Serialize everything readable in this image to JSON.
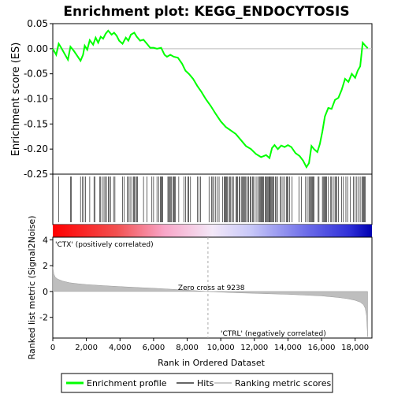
{
  "title": "Enrichment plot: KEGG_ENDOCYTOSIS",
  "colors": {
    "es_line": "#00ff00",
    "hits": "#000000",
    "metric_fill": "#bebebe",
    "pos_label": "#ff0000",
    "neg_label": "#0000ff",
    "zero_line": "#bbbbbb",
    "frame": "#000000"
  },
  "chart_data": [
    {
      "type": "line",
      "name": "enrichment-score",
      "ylabel": "Enrichment score (ES)",
      "ylim": [
        -0.25,
        0.05
      ],
      "yticks": [
        -0.25,
        -0.2,
        -0.15,
        -0.1,
        -0.05,
        0.0,
        0.05
      ],
      "ytick_labels": [
        "-0.25",
        "-0.20",
        "-0.15",
        "-0.10",
        "-0.05",
        "0.00",
        "0.05"
      ],
      "xlim": [
        0,
        19000
      ],
      "points": [
        [
          0,
          0
        ],
        [
          200,
          -0.012
        ],
        [
          350,
          0.01
        ],
        [
          500,
          0.002
        ],
        [
          700,
          -0.01
        ],
        [
          900,
          -0.022
        ],
        [
          1050,
          0.004
        ],
        [
          1250,
          -0.004
        ],
        [
          1450,
          -0.014
        ],
        [
          1650,
          -0.024
        ],
        [
          1800,
          -0.012
        ],
        [
          1900,
          0.006
        ],
        [
          2050,
          -0.002
        ],
        [
          2200,
          0.017
        ],
        [
          2400,
          0.008
        ],
        [
          2550,
          0.022
        ],
        [
          2700,
          0.012
        ],
        [
          2850,
          0.024
        ],
        [
          3000,
          0.02
        ],
        [
          3150,
          0.03
        ],
        [
          3300,
          0.036
        ],
        [
          3500,
          0.028
        ],
        [
          3650,
          0.032
        ],
        [
          3800,
          0.026
        ],
        [
          3950,
          0.016
        ],
        [
          4150,
          0.01
        ],
        [
          4350,
          0.022
        ],
        [
          4500,
          0.016
        ],
        [
          4650,
          0.028
        ],
        [
          4850,
          0.032
        ],
        [
          5000,
          0.024
        ],
        [
          5200,
          0.016
        ],
        [
          5400,
          0.018
        ],
        [
          5600,
          0.01
        ],
        [
          5800,
          0.002
        ],
        [
          6000,
          0.002
        ],
        [
          6200,
          0.0
        ],
        [
          6450,
          0.002
        ],
        [
          6650,
          -0.012
        ],
        [
          6800,
          -0.016
        ],
        [
          7000,
          -0.012
        ],
        [
          7200,
          -0.016
        ],
        [
          7450,
          -0.018
        ],
        [
          7700,
          -0.03
        ],
        [
          7900,
          -0.044
        ],
        [
          8100,
          -0.05
        ],
        [
          8350,
          -0.06
        ],
        [
          8600,
          -0.074
        ],
        [
          8850,
          -0.086
        ],
        [
          9100,
          -0.1
        ],
        [
          9400,
          -0.114
        ],
        [
          9700,
          -0.13
        ],
        [
          10000,
          -0.145
        ],
        [
          10300,
          -0.156
        ],
        [
          10600,
          -0.163
        ],
        [
          10900,
          -0.17
        ],
        [
          11200,
          -0.182
        ],
        [
          11500,
          -0.194
        ],
        [
          11800,
          -0.2
        ],
        [
          12100,
          -0.21
        ],
        [
          12400,
          -0.216
        ],
        [
          12700,
          -0.212
        ],
        [
          12900,
          -0.218
        ],
        [
          13050,
          -0.198
        ],
        [
          13200,
          -0.192
        ],
        [
          13400,
          -0.2
        ],
        [
          13600,
          -0.193
        ],
        [
          13800,
          -0.196
        ],
        [
          14000,
          -0.192
        ],
        [
          14200,
          -0.196
        ],
        [
          14450,
          -0.208
        ],
        [
          14700,
          -0.214
        ],
        [
          14900,
          -0.223
        ],
        [
          15100,
          -0.236
        ],
        [
          15250,
          -0.228
        ],
        [
          15400,
          -0.194
        ],
        [
          15550,
          -0.2
        ],
        [
          15750,
          -0.206
        ],
        [
          15900,
          -0.19
        ],
        [
          16050,
          -0.165
        ],
        [
          16200,
          -0.135
        ],
        [
          16400,
          -0.118
        ],
        [
          16600,
          -0.12
        ],
        [
          16800,
          -0.102
        ],
        [
          17000,
          -0.098
        ],
        [
          17200,
          -0.082
        ],
        [
          17400,
          -0.06
        ],
        [
          17600,
          -0.066
        ],
        [
          17800,
          -0.05
        ],
        [
          18000,
          -0.058
        ],
        [
          18150,
          -0.044
        ],
        [
          18300,
          -0.035
        ],
        [
          18450,
          0.012
        ],
        [
          18600,
          0.006
        ],
        [
          18750,
          0.001
        ]
      ]
    },
    {
      "type": "hits",
      "name": "hits",
      "xlim": [
        0,
        19000
      ],
      "hit_ranks": [
        360,
        1050,
        1100,
        1650,
        1750,
        1860,
        1950,
        2200,
        2450,
        2500,
        2780,
        2850,
        2950,
        3050,
        3120,
        3200,
        3300,
        3350,
        3450,
        3620,
        3700,
        4150,
        4250,
        4450,
        4500,
        4600,
        4700,
        4800,
        4850,
        4920,
        5000,
        5050,
        5400,
        5600,
        5900,
        6000,
        6200,
        6300,
        6400,
        6450,
        6500,
        6550,
        6850,
        6900,
        6950,
        7000,
        7050,
        7150,
        7200,
        7250,
        7300,
        7500,
        7800,
        7900,
        8050,
        8100,
        8200,
        8600,
        8700,
        8800,
        9300,
        9450,
        9520,
        9600,
        9700,
        9800,
        9900,
        10100,
        10200,
        10250,
        10300,
        10350,
        10400,
        10500,
        10550,
        10600,
        10700,
        10750,
        10900,
        10950,
        11000,
        11100,
        11150,
        11250,
        11300,
        11350,
        11400,
        11450,
        11500,
        11600,
        11650,
        11750,
        11800,
        11900,
        11950,
        12050,
        12150,
        12250,
        12300,
        12350,
        12400,
        12450,
        12500,
        12550,
        12650,
        12700,
        12750,
        12800,
        12850,
        12900,
        12920,
        12950,
        13000,
        13050,
        13100,
        13150,
        13250,
        13300,
        13400,
        13550,
        13600,
        13700,
        13800,
        13900,
        13950,
        14000,
        14100,
        14250,
        14650,
        14800,
        15050,
        15150,
        15250,
        15300,
        15350,
        15400,
        15450,
        15500,
        15550,
        15800,
        15850,
        16050,
        16100,
        16150,
        16200,
        16250,
        16300,
        16400,
        16550,
        16600,
        16700,
        16800,
        16850,
        16900,
        17000,
        17200,
        17300,
        17450,
        17550,
        17700,
        17900,
        18000,
        18100,
        18200,
        18300,
        18400,
        18450,
        18500,
        18550,
        18600
      ]
    },
    {
      "type": "area",
      "name": "ranked-list-metric",
      "xlabel": "Rank in Ordered Dataset",
      "ylabel": "Ranked list metric (Signal2Noise)",
      "ylim": [
        -3.6,
        4.2
      ],
      "yticks": [
        -2,
        0,
        2,
        4
      ],
      "ytick_labels": [
        "-2",
        "0",
        "2",
        "4"
      ],
      "xlim": [
        0,
        19000
      ],
      "xticks": [
        0,
        2000,
        4000,
        6000,
        8000,
        10000,
        12000,
        14000,
        16000,
        18000
      ],
      "xtick_labels": [
        "0",
        "2,000",
        "4,000",
        "6,000",
        "8,000",
        "10,000",
        "12,000",
        "14,000",
        "16,000",
        "18,000"
      ],
      "points": [
        [
          0,
          1.9
        ],
        [
          60,
          1.35
        ],
        [
          150,
          1.1
        ],
        [
          300,
          0.95
        ],
        [
          600,
          0.8
        ],
        [
          1000,
          0.68
        ],
        [
          1500,
          0.6
        ],
        [
          2000,
          0.54
        ],
        [
          3000,
          0.45
        ],
        [
          4000,
          0.38
        ],
        [
          5000,
          0.31
        ],
        [
          6000,
          0.25
        ],
        [
          7000,
          0.18
        ],
        [
          8000,
          0.1
        ],
        [
          9238,
          0.0
        ],
        [
          10000,
          -0.05
        ],
        [
          11000,
          -0.1
        ],
        [
          12000,
          -0.14
        ],
        [
          13000,
          -0.18
        ],
        [
          14000,
          -0.22
        ],
        [
          15000,
          -0.28
        ],
        [
          16000,
          -0.34
        ],
        [
          16500,
          -0.4
        ],
        [
          17000,
          -0.46
        ],
        [
          17500,
          -0.55
        ],
        [
          18000,
          -0.68
        ],
        [
          18300,
          -0.82
        ],
        [
          18500,
          -1.02
        ],
        [
          18600,
          -1.3
        ],
        [
          18680,
          -1.9
        ],
        [
          18740,
          -3.5
        ]
      ],
      "zero_cross": 9238,
      "zero_cross_label": "Zero cross at 9238",
      "pos_label": "'CTX' (positively correlated)",
      "neg_label": "'CTRL' (negatively correlated)"
    }
  ],
  "legend": {
    "items": [
      {
        "label": "Enrichment profile",
        "swatch_color": "#00ff00"
      },
      {
        "label": "Hits",
        "swatch_color": "#666666"
      },
      {
        "label": "Ranking metric scores",
        "swatch_color": "#cccccc"
      }
    ]
  }
}
